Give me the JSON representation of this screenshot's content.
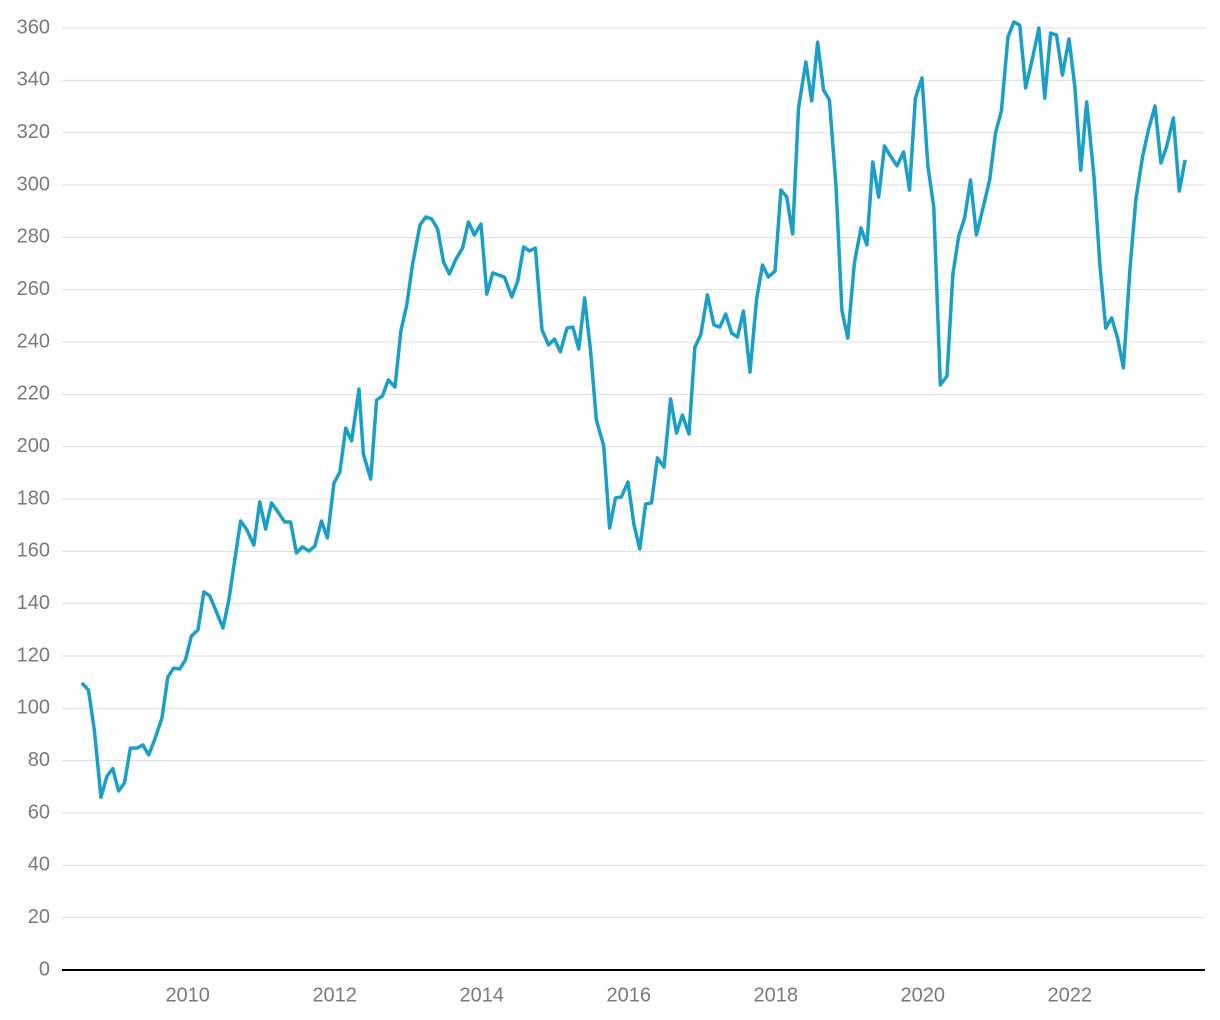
{
  "chart_data": {
    "type": "line",
    "x": [
      2008.56,
      2008.65,
      2008.73,
      2008.82,
      2008.9,
      2008.98,
      2009.06,
      2009.14,
      2009.22,
      2009.31,
      2009.39,
      2009.47,
      2009.55,
      2009.65,
      2009.73,
      2009.81,
      2009.89,
      2009.97,
      2010.05,
      2010.14,
      2010.22,
      2010.3,
      2010.38,
      2010.48,
      2010.56,
      2010.64,
      2010.72,
      2010.8,
      2010.9,
      2010.98,
      2011.06,
      2011.14,
      2011.22,
      2011.32,
      2011.4,
      2011.48,
      2011.56,
      2011.65,
      2011.73,
      2011.82,
      2011.9,
      2011.99,
      2012.07,
      2012.15,
      2012.23,
      2012.33,
      2012.39,
      2012.49,
      2012.57,
      2012.65,
      2012.73,
      2012.82,
      2012.9,
      2012.98,
      2013.06,
      2013.16,
      2013.24,
      2013.32,
      2013.4,
      2013.48,
      2013.56,
      2013.65,
      2013.74,
      2013.82,
      2013.9,
      2013.99,
      2014.07,
      2014.15,
      2014.23,
      2014.31,
      2014.41,
      2014.49,
      2014.57,
      2014.65,
      2014.73,
      2014.82,
      2014.91,
      2014.99,
      2015.07,
      2015.16,
      2015.24,
      2015.32,
      2015.4,
      2015.48,
      2015.56,
      2015.66,
      2015.74,
      2015.82,
      2015.9,
      2015.99,
      2016.07,
      2016.15,
      2016.23,
      2016.31,
      2016.39,
      2016.48,
      2016.57,
      2016.65,
      2016.73,
      2016.82,
      2016.9,
      2016.98,
      2017.07,
      2017.16,
      2017.24,
      2017.32,
      2017.4,
      2017.48,
      2017.56,
      2017.65,
      2017.74,
      2017.82,
      2017.9,
      2017.99,
      2018.07,
      2018.15,
      2018.23,
      2018.31,
      2018.41,
      2018.49,
      2018.57,
      2018.65,
      2018.73,
      2018.82,
      2018.9,
      2018.98,
      2019.07,
      2019.16,
      2019.24,
      2019.32,
      2019.4,
      2019.48,
      2019.56,
      2019.65,
      2019.74,
      2019.82,
      2019.9,
      2019.99,
      2020.07,
      2020.15,
      2020.24,
      2020.33,
      2020.41,
      2020.49,
      2020.57,
      2020.65,
      2020.73,
      2020.83,
      2020.91,
      2020.99,
      2021.07,
      2021.16,
      2021.24,
      2021.32,
      2021.4,
      2021.5,
      2021.58,
      2021.66,
      2021.74,
      2021.82,
      2021.9,
      2021.99,
      2022.07,
      2022.15,
      2022.23,
      2022.33,
      2022.41,
      2022.49,
      2022.57,
      2022.65,
      2022.73,
      2022.82,
      2022.9,
      2022.99,
      2023.07,
      2023.16,
      2023.24,
      2023.32,
      2023.41,
      2023.49,
      2023.57
    ],
    "series": [
      {
        "color": "#1a9fc9",
        "values": [
          109.7,
          107,
          91.7,
          66,
          74,
          77,
          68.4,
          71.5,
          84.8,
          84.8,
          86,
          82.2,
          88,
          96.3,
          112,
          115.4,
          115,
          118.5,
          127.6,
          130,
          144.5,
          143,
          137.6,
          130.7,
          141.4,
          156.7,
          171.6,
          168.5,
          162.4,
          178.9,
          168.5,
          178.5,
          175.4,
          171.2,
          171.2,
          159.4,
          161.7,
          160.1,
          162,
          171.6,
          165.1,
          186.1,
          190.3,
          207.1,
          202.2,
          222,
          197.2,
          187.6,
          217.8,
          219.4,
          225.5,
          222.8,
          244.2,
          254.1,
          269.8,
          284.7,
          287.8,
          287,
          283.2,
          270.6,
          266,
          271.7,
          275.9,
          285.9,
          280.9,
          285.1,
          258.3,
          266.4,
          265.6,
          264.8,
          257.2,
          263.3,
          276.3,
          274.8,
          275.9,
          244.6,
          238.9,
          241.1,
          236.2,
          245.3,
          245.7,
          237.3,
          256.8,
          236.9,
          210.2,
          200.3,
          168.9,
          180.4,
          180.8,
          186.5,
          170.4,
          160.9,
          178.1,
          178.5,
          195.7,
          192.2,
          218.2,
          205.2,
          212.1,
          204.8,
          238.1,
          242.7,
          258,
          246.5,
          245.7,
          250.7,
          243.4,
          241.9,
          251.8,
          228.5,
          256.4,
          269.4,
          264.8,
          267.1,
          298.1,
          295.4,
          281.3,
          329.4,
          347,
          332.1,
          354.6,
          336.3,
          332.5,
          299.6,
          252.2,
          241.5,
          270.2,
          283.6,
          277.1,
          308.8,
          295.4,
          314.9,
          311.1,
          307.3,
          312.6,
          298.1,
          333.2,
          340.9,
          307.3,
          291.6,
          223.6,
          227,
          266,
          280.5,
          287.4,
          301.9,
          280.9,
          292.4,
          301.9,
          319.9,
          328.3,
          356.6,
          362.3,
          361.1,
          337.1,
          349.3,
          360,
          333.2,
          358.1,
          357.3,
          342,
          355.8,
          337.4,
          305.7,
          331.7,
          303.1,
          269.4,
          245.3,
          249.2,
          241.5,
          230.1,
          268.3,
          294.6,
          310.7,
          321,
          330.2,
          308.4,
          314.9,
          325.6,
          297.7,
          309.6
        ]
      }
    ],
    "xlim": [
      2008.29,
      2023.84
    ],
    "xticks": [
      2010,
      2012,
      2014,
      2016,
      2018,
      2020,
      2022
    ],
    "ylim": [
      0,
      360
    ],
    "yticks": [
      0,
      20,
      40,
      60,
      80,
      100,
      120,
      140,
      160,
      180,
      200,
      220,
      240,
      260,
      280,
      300,
      320,
      340,
      360
    ],
    "grid": true
  }
}
